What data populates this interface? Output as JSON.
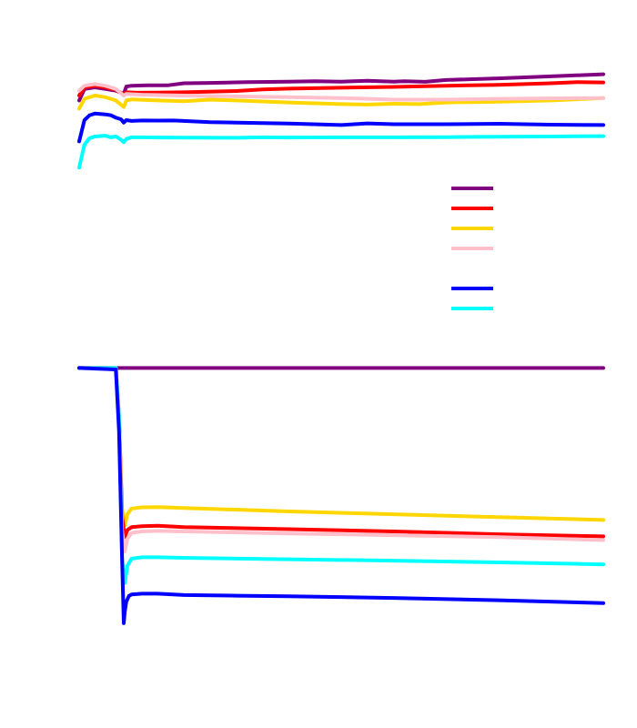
{
  "chart_data": [
    {
      "type": "line",
      "title": "",
      "xlabel": "",
      "ylabel": "",
      "xlim": [
        0,
        100
      ],
      "ylim": [
        0,
        100
      ],
      "grid": false,
      "legend_placement": "center-right",
      "series": [
        {
          "color": "#800080",
          "x": [
            0,
            1,
            3,
            5,
            7,
            8.5,
            9,
            10,
            13,
            17,
            20,
            25,
            32,
            40,
            45,
            50,
            55,
            60,
            62,
            66,
            70,
            80,
            90,
            100
          ],
          "y": [
            72,
            79,
            80,
            79,
            78,
            76,
            80.5,
            81,
            81.2,
            81.3,
            82.5,
            82.7,
            83.2,
            83.5,
            83.7,
            83.5,
            84,
            83.5,
            83.8,
            83.4,
            84.5,
            85.5,
            86.7,
            88
          ]
        },
        {
          "color": "#ff0000",
          "x": [
            0,
            1,
            3,
            5,
            7,
            8.5,
            9,
            11,
            15,
            20,
            30,
            35,
            40,
            50,
            60,
            70,
            80,
            90,
            95,
            100
          ],
          "y": [
            75,
            80,
            81,
            80,
            78.5,
            75.5,
            77,
            76.7,
            76.8,
            77,
            77.8,
            78.8,
            79.2,
            79.8,
            80.3,
            81,
            81.5,
            82.5,
            83.2,
            83
          ]
        },
        {
          "color": "#ffd700",
          "x": [
            0,
            1,
            3,
            5,
            7,
            8.5,
            9,
            10,
            15,
            20,
            25,
            30,
            40,
            50,
            55,
            60,
            65,
            70,
            80,
            90,
            100
          ],
          "y": [
            67,
            73,
            75,
            74,
            72,
            68,
            72,
            72.6,
            72,
            71.5,
            72.5,
            72,
            70.8,
            69.8,
            69.5,
            70,
            69.8,
            70.8,
            71.3,
            72,
            73.5
          ]
        },
        {
          "color": "#ffc0cb",
          "x": [
            0,
            1,
            3,
            5,
            7,
            8.5,
            9,
            12,
            20,
            30,
            40,
            50,
            60,
            70,
            80,
            90,
            100
          ],
          "y": [
            78,
            81,
            82,
            81,
            79,
            75,
            76,
            75.5,
            75,
            74.5,
            74,
            73.5,
            72.5,
            72.5,
            73,
            73.3,
            73.5
          ]
        },
        {
          "color": "#0000ff",
          "x": [
            0,
            1,
            2,
            3,
            5,
            6,
            7,
            8,
            8.5,
            9,
            10,
            12,
            15,
            18,
            25,
            30,
            35,
            40,
            50,
            55,
            60,
            70,
            80,
            90,
            100
          ],
          "y": [
            47,
            60,
            63,
            64,
            63.5,
            63,
            61.5,
            60.5,
            58.5,
            60,
            59.5,
            59.8,
            59.7,
            59.8,
            58.8,
            58.5,
            58.2,
            57.9,
            57,
            58,
            57.5,
            57.5,
            57.8,
            57.2,
            57
          ]
        },
        {
          "color": "#00ffff",
          "x": [
            0,
            1,
            2,
            3,
            5,
            6,
            7,
            8,
            8.5,
            9,
            10,
            12,
            15,
            20,
            30,
            35,
            40,
            50,
            60,
            70,
            80,
            90,
            100
          ],
          "y": [
            31,
            45,
            49,
            50,
            50.5,
            49.5,
            50,
            48,
            46.5,
            48.5,
            49.5,
            49.5,
            49.4,
            49.3,
            49.2,
            49.5,
            49.4,
            49.5,
            49.5,
            49.6,
            49.9,
            50,
            50.2
          ]
        }
      ]
    },
    {
      "type": "line",
      "title": "",
      "xlabel": "",
      "ylabel": "",
      "xlim": [
        0,
        100
      ],
      "ylim": [
        0,
        100
      ],
      "grid": false,
      "series": [
        {
          "color": "#800080",
          "x": [
            0,
            7,
            8,
            9,
            100
          ],
          "y": [
            97,
            97,
            97,
            97,
            97
          ]
        },
        {
          "color": "#ffd700",
          "x": [
            0,
            7,
            7.6,
            8.2,
            8.7,
            9.2,
            10,
            12,
            15,
            20,
            40,
            60,
            80,
            100
          ],
          "y": [
            97,
            97,
            80,
            48,
            42,
            46,
            48,
            48.4,
            48.5,
            48.2,
            47,
            46,
            45,
            44
          ]
        },
        {
          "color": "#ff0000",
          "x": [
            0,
            7,
            7.6,
            8.2,
            8.7,
            9.2,
            10,
            12,
            15,
            20,
            40,
            60,
            80,
            100
          ],
          "y": [
            97,
            97,
            80,
            45,
            38,
            40.5,
            41.5,
            41.8,
            42,
            41.5,
            40.8,
            40,
            39,
            38.3
          ]
        },
        {
          "color": "#ffc0cb",
          "x": [
            0,
            7,
            7.6,
            8.2,
            8.7,
            9.2,
            10,
            12,
            15,
            20,
            40,
            60,
            80,
            100
          ],
          "y": [
            97,
            97,
            80,
            40,
            33,
            37.5,
            39.5,
            40,
            40.2,
            40,
            39.3,
            38.7,
            38,
            37
          ]
        },
        {
          "color": "#00ffff",
          "x": [
            0,
            7,
            7.6,
            8.2,
            8.7,
            9.2,
            10,
            12,
            15,
            20,
            40,
            60,
            80,
            100
          ],
          "y": [
            97,
            97,
            80,
            30,
            22,
            28,
            30.5,
            31,
            31,
            30.8,
            30.3,
            29.8,
            29.2,
            28.5
          ]
        },
        {
          "color": "#0000ff",
          "x": [
            0,
            7,
            7.6,
            8.2,
            8.5,
            8.7,
            9,
            9.5,
            10,
            12,
            15,
            20,
            30,
            40,
            60,
            80,
            100
          ],
          "y": [
            97,
            96.5,
            75,
            30,
            8,
            12,
            15.5,
            17.5,
            18,
            18.3,
            18.3,
            17.8,
            17.6,
            17.4,
            16.8,
            16,
            15
          ]
        }
      ]
    }
  ]
}
